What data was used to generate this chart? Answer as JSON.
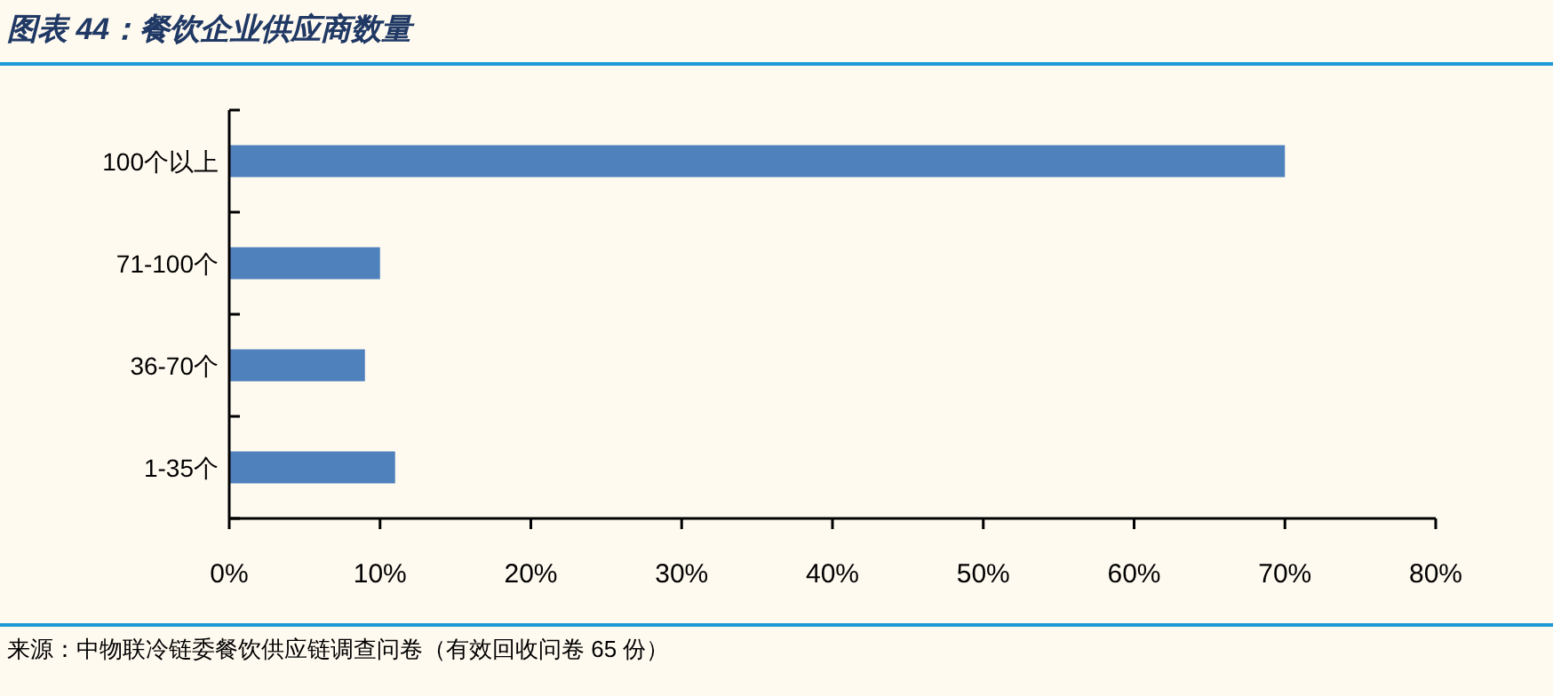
{
  "chart_data": {
    "type": "bar",
    "orientation": "horizontal",
    "title": "图表 44：餐饮企业供应商数量",
    "categories": [
      "100个以上",
      "71-100个",
      "36-70个",
      "1-35个"
    ],
    "values": [
      70,
      10,
      9,
      11
    ],
    "color": "#4f81bd",
    "xlim": [
      0,
      80
    ],
    "xticks": [
      {
        "value": 0,
        "label": "0%"
      },
      {
        "value": 10,
        "label": "10%"
      },
      {
        "value": 20,
        "label": "20%"
      },
      {
        "value": 30,
        "label": "30%"
      },
      {
        "value": 40,
        "label": "40%"
      },
      {
        "value": 50,
        "label": "50%"
      },
      {
        "value": 60,
        "label": "60%"
      },
      {
        "value": 70,
        "label": "70%"
      },
      {
        "value": 80,
        "label": "80%"
      }
    ],
    "annotations": [
      "来源：中物联冷链委餐饮供应链调查问卷（有效回收问卷 65 份）"
    ]
  }
}
